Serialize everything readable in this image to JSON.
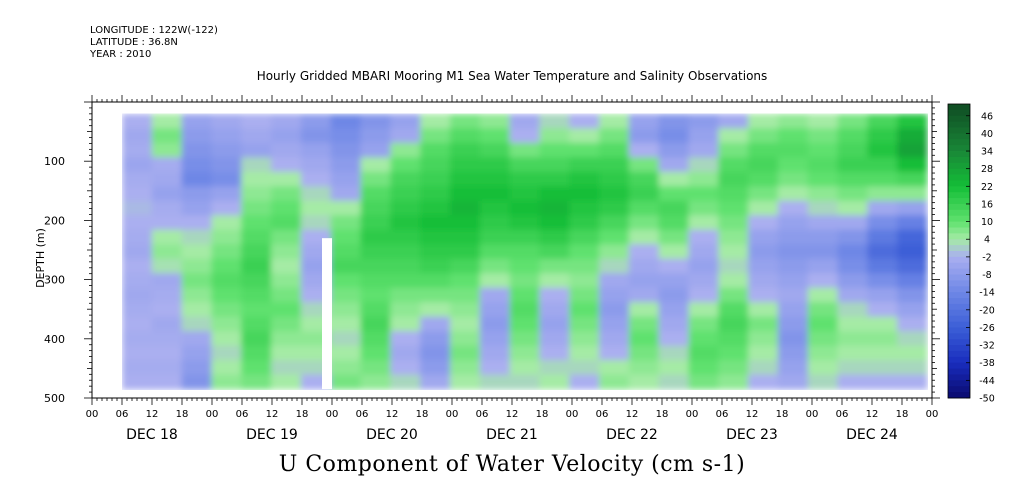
{
  "header": {
    "longitude": "LONGITUDE : 122W(-122)",
    "latitude": "LATITUDE : 36.8N",
    "year": "YEAR : 2010"
  },
  "chart_data": {
    "type": "heatmap",
    "title": "Hourly Gridded MBARI Mooring M1 Sea Water Temperature and Salinity Observations",
    "bottom_label": "U Component of Water Velocity (cm s-1)",
    "ylabel": "DEPTH (m)",
    "ylim": [
      500,
      0
    ],
    "y_ticks": [
      100,
      200,
      300,
      400,
      500
    ],
    "x_hour_ticks": [
      "00",
      "06",
      "12",
      "18",
      "00",
      "06",
      "12",
      "18",
      "00",
      "06",
      "12",
      "18",
      "00",
      "06",
      "12",
      "18",
      "00",
      "06",
      "12",
      "18",
      "00",
      "06",
      "12",
      "18",
      "00",
      "06",
      "12",
      "18",
      "00"
    ],
    "x_day_labels": [
      "DEC 18",
      "DEC 19",
      "DEC 20",
      "DEC 21",
      "DEC 22",
      "DEC 23",
      "DEC 24"
    ],
    "colorbar": {
      "levels": [
        46,
        40,
        34,
        28,
        22,
        16,
        10,
        4,
        -2,
        -8,
        -14,
        -20,
        -26,
        -32,
        -38,
        -44,
        -50
      ],
      "range": [
        -50,
        50
      ]
    },
    "data_extent": {
      "time_start": "2010-12-18 06:00",
      "time_end": "2010-12-24 23:00",
      "depth_top": 20,
      "depth_bottom": 485
    },
    "gaps": [
      {
        "time_start": "2010-12-19 22:00",
        "time_end": "2010-12-20 00:00",
        "depth_top": 230,
        "depth_bottom": 485
      }
    ],
    "profile_columns": [
      {
        "time": "Dec 18 06",
        "values": [
          -2,
          -4,
          -3,
          -5,
          -3,
          -2,
          -1,
          -2,
          -3,
          -4,
          -2,
          -3,
          -4,
          -3,
          -2,
          -3,
          -2,
          -3,
          -2
        ]
      },
      {
        "time": "Dec 18 12",
        "values": [
          4,
          8,
          6,
          -3,
          -4,
          -6,
          -3,
          -2,
          4,
          6,
          3,
          -4,
          -3,
          -2,
          -4,
          -3,
          -2,
          -3,
          -2
        ]
      },
      {
        "time": "Dec 18 18",
        "values": [
          -6,
          -8,
          -10,
          -12,
          -14,
          -8,
          -6,
          -2,
          2,
          4,
          6,
          8,
          6,
          4,
          2,
          -4,
          -6,
          -8,
          -10
        ]
      },
      {
        "time": "Dec 19 00",
        "values": [
          -4,
          -6,
          -8,
          -10,
          -12,
          -6,
          -2,
          4,
          6,
          8,
          10,
          12,
          10,
          8,
          6,
          4,
          2,
          4,
          6
        ]
      },
      {
        "time": "Dec 19 06",
        "values": [
          -2,
          -4,
          -6,
          2,
          4,
          6,
          8,
          10,
          12,
          14,
          16,
          14,
          12,
          10,
          12,
          14,
          12,
          10,
          8
        ]
      },
      {
        "time": "Dec 19 12",
        "values": [
          -4,
          -6,
          -4,
          -2,
          4,
          8,
          10,
          12,
          8,
          6,
          4,
          6,
          8,
          10,
          8,
          6,
          4,
          2,
          4
        ]
      },
      {
        "time": "Dec 19 18",
        "values": [
          -8,
          -10,
          -6,
          -4,
          -2,
          2,
          4,
          2,
          -2,
          -4,
          -6,
          -4,
          -2,
          2,
          4,
          6,
          4,
          2,
          -2
        ]
      },
      {
        "time": "Dec 20 00",
        "values": [
          -14,
          -12,
          -10,
          -8,
          -6,
          -4,
          4,
          8,
          10,
          12,
          14,
          10,
          8,
          6,
          4,
          2,
          4,
          6,
          8
        ]
      },
      {
        "time": "Dec 20 06",
        "values": [
          -10,
          -8,
          -6,
          4,
          8,
          12,
          14,
          16,
          18,
          16,
          14,
          12,
          10,
          12,
          14,
          12,
          10,
          8,
          6
        ]
      },
      {
        "time": "Dec 20 12",
        "values": [
          -6,
          -4,
          6,
          10,
          14,
          16,
          18,
          20,
          18,
          16,
          14,
          12,
          8,
          6,
          4,
          -2,
          -4,
          -2,
          2
        ]
      },
      {
        "time": "Dec 20 18",
        "values": [
          4,
          8,
          12,
          14,
          16,
          18,
          20,
          22,
          20,
          18,
          16,
          12,
          8,
          4,
          -4,
          -8,
          -10,
          -8,
          -4
        ]
      },
      {
        "time": "Dec 21 00",
        "values": [
          8,
          12,
          16,
          18,
          20,
          22,
          24,
          22,
          20,
          18,
          14,
          10,
          8,
          6,
          4,
          6,
          8,
          6,
          4
        ]
      },
      {
        "time": "Dec 21 06",
        "values": [
          6,
          10,
          14,
          18,
          20,
          22,
          20,
          18,
          16,
          12,
          8,
          4,
          -4,
          -6,
          -8,
          -6,
          -4,
          -2,
          2
        ]
      },
      {
        "time": "Dec 21 12",
        "values": [
          -4,
          -2,
          8,
          14,
          18,
          20,
          22,
          20,
          16,
          12,
          10,
          8,
          10,
          12,
          10,
          8,
          6,
          4,
          2
        ]
      },
      {
        "time": "Dec 21 18",
        "values": [
          2,
          6,
          10,
          14,
          18,
          22,
          24,
          22,
          18,
          14,
          8,
          4,
          -2,
          -4,
          -6,
          -4,
          -2,
          2,
          4
        ]
      },
      {
        "time": "Dec 22 00",
        "values": [
          -2,
          4,
          10,
          16,
          20,
          22,
          20,
          18,
          14,
          10,
          8,
          6,
          8,
          10,
          8,
          6,
          4,
          2,
          -2
        ]
      },
      {
        "time": "Dec 22 06",
        "values": [
          4,
          8,
          12,
          16,
          18,
          20,
          18,
          14,
          10,
          6,
          2,
          -4,
          -6,
          -8,
          -6,
          -4,
          -2,
          4,
          6
        ]
      },
      {
        "time": "Dec 22 12",
        "values": [
          -6,
          -8,
          -2,
          8,
          14,
          16,
          12,
          8,
          4,
          -2,
          -4,
          -6,
          -4,
          4,
          8,
          10,
          8,
          6,
          4
        ]
      },
      {
        "time": "Dec 22 18",
        "values": [
          -10,
          -12,
          -8,
          -4,
          4,
          10,
          14,
          12,
          8,
          4,
          -2,
          -6,
          -8,
          -6,
          -4,
          -2,
          2,
          4,
          2
        ]
      },
      {
        "time": "Dec 23 00",
        "values": [
          -8,
          -6,
          -4,
          2,
          6,
          10,
          8,
          4,
          -2,
          -4,
          -6,
          -4,
          -2,
          4,
          8,
          10,
          12,
          10,
          8
        ]
      },
      {
        "time": "Dec 23 06",
        "values": [
          -4,
          4,
          8,
          12,
          14,
          12,
          10,
          8,
          6,
          4,
          2,
          4,
          8,
          12,
          14,
          12,
          10,
          8,
          6
        ]
      },
      {
        "time": "Dec 23 12",
        "values": [
          4,
          8,
          12,
          14,
          12,
          8,
          4,
          -2,
          -6,
          -8,
          -6,
          -4,
          -2,
          4,
          8,
          6,
          4,
          2,
          -2
        ]
      },
      {
        "time": "Dec 23 18",
        "values": [
          6,
          10,
          12,
          10,
          8,
          4,
          -2,
          -6,
          -8,
          -10,
          -8,
          -6,
          -4,
          -6,
          -8,
          -10,
          -8,
          -6,
          -4
        ]
      },
      {
        "time": "Dec 24 00",
        "values": [
          4,
          8,
          10,
          12,
          10,
          6,
          2,
          -4,
          -8,
          -10,
          -6,
          -2,
          4,
          8,
          10,
          8,
          6,
          4,
          2
        ]
      },
      {
        "time": "Dec 24 06",
        "values": [
          8,
          12,
          14,
          16,
          12,
          8,
          4,
          -4,
          -10,
          -14,
          -12,
          -8,
          -4,
          2,
          4,
          6,
          4,
          2,
          -2
        ]
      },
      {
        "time": "Dec 24 12",
        "values": [
          14,
          18,
          20,
          16,
          12,
          6,
          -4,
          -12,
          -18,
          -22,
          -18,
          -12,
          -6,
          -2,
          4,
          6,
          4,
          2,
          -2
        ]
      },
      {
        "time": "Dec 24 18",
        "values": [
          20,
          26,
          28,
          22,
          14,
          6,
          -6,
          -16,
          -24,
          -26,
          -22,
          -16,
          -10,
          -6,
          -2,
          2,
          4,
          2,
          -2
        ]
      }
    ]
  }
}
